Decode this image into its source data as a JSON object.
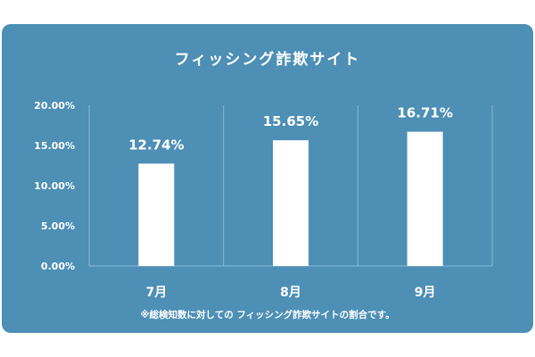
{
  "title": "フィッシング詐欺サイト",
  "footnote": "※総検知数に対しての フィッシング詐欺サイトの割合です。",
  "colors": {
    "background": "#4d8fb5",
    "bar": "#ffffff",
    "text": "#ffffff",
    "grid": "#8bb8d3"
  },
  "chart_data": {
    "type": "bar",
    "categories": [
      "7月",
      "8月",
      "9月"
    ],
    "values": [
      12.74,
      15.65,
      16.71
    ],
    "value_labels": [
      "12.74%",
      "15.65%",
      "16.71%"
    ],
    "y_ticks": [
      "0.00%",
      "5.00%",
      "10.00%",
      "15.00%",
      "20.00%"
    ],
    "y_tick_values": [
      0,
      5,
      10,
      15,
      20
    ],
    "ylim": [
      0,
      20
    ],
    "grid": true
  }
}
